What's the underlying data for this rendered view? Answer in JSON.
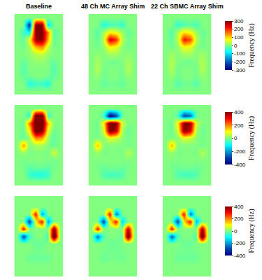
{
  "chart_data": {
    "type": "heatmap",
    "column_titles": [
      "Baseline",
      "48 Ch MC Array Shim",
      "22 Ch SBMC Array Shim"
    ],
    "colorbar_title": "Frequency (Hz)",
    "tick_labels": false,
    "rows": [
      {
        "zlim": [
          -300,
          300
        ],
        "zticks": [
          -300,
          -200,
          -100,
          0,
          100,
          200,
          300
        ],
        "cells": [
          [
            [
              0,
              0,
              0,
              0,
              0,
              0,
              0,
              0
            ],
            [
              0,
              0,
              -250,
              300,
              300,
              -100,
              0,
              0
            ],
            [
              0,
              -40,
              -80,
              300,
              300,
              150,
              -30,
              0
            ],
            [
              0,
              -20,
              60,
              280,
              300,
              120,
              -20,
              0
            ],
            [
              0,
              -10,
              20,
              120,
              150,
              40,
              -10,
              0
            ],
            [
              0,
              0,
              10,
              30,
              40,
              10,
              0,
              0
            ],
            [
              0,
              -20,
              0,
              10,
              10,
              0,
              -20,
              0
            ],
            [
              0,
              -30,
              0,
              0,
              0,
              0,
              -30,
              0
            ],
            [
              0,
              -20,
              -10,
              0,
              0,
              -10,
              -20,
              0
            ],
            [
              0,
              0,
              -60,
              -40,
              -40,
              -60,
              0,
              0
            ],
            [
              0,
              0,
              0,
              0,
              0,
              0,
              0,
              0
            ]
          ],
          [
            [
              0,
              0,
              0,
              0,
              0,
              0,
              0,
              0
            ],
            [
              0,
              0,
              -60,
              -40,
              -30,
              -50,
              0,
              0
            ],
            [
              0,
              -30,
              20,
              80,
              60,
              20,
              -20,
              0
            ],
            [
              0,
              -20,
              30,
              250,
              200,
              30,
              -10,
              0
            ],
            [
              0,
              -10,
              10,
              80,
              60,
              10,
              -10,
              0
            ],
            [
              0,
              10,
              0,
              20,
              20,
              0,
              10,
              0
            ],
            [
              0,
              20,
              0,
              -10,
              -10,
              0,
              20,
              0
            ],
            [
              0,
              30,
              -10,
              0,
              0,
              -10,
              30,
              0
            ],
            [
              0,
              10,
              -10,
              0,
              0,
              -10,
              10,
              0
            ],
            [
              0,
              0,
              -20,
              -10,
              -10,
              -20,
              0,
              0
            ],
            [
              0,
              0,
              0,
              0,
              0,
              0,
              0,
              0
            ]
          ],
          [
            [
              0,
              0,
              0,
              0,
              0,
              0,
              0,
              0
            ],
            [
              0,
              0,
              -50,
              -30,
              -20,
              -40,
              0,
              0
            ],
            [
              0,
              -30,
              30,
              90,
              70,
              20,
              -20,
              0
            ],
            [
              0,
              -20,
              30,
              220,
              180,
              30,
              -10,
              0
            ],
            [
              0,
              -10,
              10,
              70,
              60,
              10,
              -10,
              0
            ],
            [
              0,
              20,
              0,
              20,
              20,
              0,
              20,
              0
            ],
            [
              0,
              30,
              0,
              -10,
              -10,
              0,
              30,
              0
            ],
            [
              0,
              30,
              -10,
              0,
              0,
              -10,
              30,
              0
            ],
            [
              0,
              10,
              -10,
              0,
              0,
              -10,
              10,
              0
            ],
            [
              0,
              0,
              -30,
              -10,
              -10,
              -30,
              0,
              0
            ],
            [
              0,
              0,
              0,
              0,
              0,
              0,
              0,
              0
            ]
          ]
        ]
      },
      {
        "zlim": [
          -400,
          400
        ],
        "zticks": [
          -400,
          -200,
          0,
          200,
          400
        ],
        "cells": [
          [
            [
              0,
              0,
              0,
              0,
              0,
              0,
              0,
              0
            ],
            [
              0,
              0,
              -80,
              450,
              450,
              -60,
              0,
              0
            ],
            [
              0,
              -20,
              200,
              450,
              450,
              150,
              0,
              0
            ],
            [
              0,
              -20,
              100,
              450,
              400,
              80,
              -20,
              0
            ],
            [
              0,
              -30,
              20,
              200,
              180,
              20,
              -30,
              0
            ],
            [
              0,
              180,
              0,
              30,
              30,
              0,
              -20,
              0
            ],
            [
              0,
              20,
              -10,
              0,
              0,
              -10,
              60,
              0
            ],
            [
              0,
              -10,
              0,
              0,
              0,
              0,
              -10,
              0
            ],
            [
              0,
              -10,
              -30,
              -20,
              -20,
              -30,
              -10,
              0
            ],
            [
              0,
              0,
              -60,
              -80,
              -80,
              -60,
              0,
              0
            ],
            [
              0,
              0,
              0,
              0,
              0,
              0,
              0,
              0
            ]
          ],
          [
            [
              0,
              0,
              0,
              0,
              0,
              0,
              0,
              0
            ],
            [
              0,
              0,
              -50,
              -400,
              -300,
              -20,
              0,
              0
            ],
            [
              0,
              -20,
              100,
              450,
              400,
              60,
              0,
              0
            ],
            [
              0,
              -20,
              60,
              420,
              350,
              30,
              -20,
              0
            ],
            [
              0,
              -10,
              10,
              80,
              60,
              10,
              -10,
              0
            ],
            [
              0,
              150,
              0,
              0,
              0,
              0,
              -10,
              0
            ],
            [
              0,
              20,
              -10,
              0,
              0,
              -10,
              40,
              0
            ],
            [
              0,
              0,
              0,
              0,
              0,
              0,
              0,
              0
            ],
            [
              0,
              -10,
              -20,
              -10,
              -10,
              -20,
              -10,
              0
            ],
            [
              0,
              0,
              -40,
              -50,
              -50,
              -40,
              0,
              0
            ],
            [
              0,
              0,
              0,
              0,
              0,
              0,
              0,
              0
            ]
          ],
          [
            [
              0,
              0,
              0,
              0,
              0,
              0,
              0,
              0
            ],
            [
              0,
              0,
              -40,
              -300,
              -250,
              -20,
              0,
              0
            ],
            [
              0,
              -20,
              100,
              400,
              380,
              60,
              0,
              0
            ],
            [
              0,
              -20,
              60,
              400,
              330,
              30,
              -20,
              0
            ],
            [
              0,
              -10,
              10,
              80,
              60,
              10,
              -10,
              0
            ],
            [
              0,
              160,
              0,
              0,
              0,
              0,
              -10,
              0
            ],
            [
              0,
              20,
              -10,
              0,
              0,
              -10,
              40,
              0
            ],
            [
              0,
              0,
              0,
              0,
              0,
              0,
              0,
              0
            ],
            [
              0,
              -10,
              -20,
              -10,
              -10,
              -20,
              -10,
              0
            ],
            [
              0,
              0,
              -40,
              -50,
              -50,
              -40,
              0,
              0
            ],
            [
              0,
              0,
              0,
              0,
              0,
              0,
              0,
              0
            ]
          ]
        ]
      },
      {
        "zlim": [
          -400,
          400
        ],
        "zticks": [
          -400,
          -200,
          0,
          200,
          400
        ],
        "cells": [
          [
            [
              0,
              0,
              0,
              0,
              0,
              0,
              0,
              0
            ],
            [
              0,
              0,
              0,
              0,
              0,
              0,
              0,
              0
            ],
            [
              0,
              0,
              0,
              300,
              -200,
              0,
              0,
              0
            ],
            [
              0,
              0,
              -300,
              100,
              300,
              -200,
              0,
              0
            ],
            [
              0,
              300,
              0,
              0,
              0,
              0,
              400,
              0
            ],
            [
              0,
              -300,
              -50,
              0,
              0,
              -50,
              500,
              0
            ],
            [
              0,
              0,
              0,
              -20,
              -20,
              0,
              0,
              0
            ],
            [
              0,
              0,
              0,
              -10,
              -10,
              0,
              0,
              0
            ],
            [
              0,
              0,
              -20,
              -20,
              -20,
              -20,
              0,
              0
            ],
            [
              0,
              0,
              0,
              0,
              0,
              0,
              0,
              0
            ],
            [
              0,
              0,
              0,
              0,
              0,
              0,
              0,
              0
            ]
          ],
          [
            [
              0,
              0,
              0,
              0,
              0,
              0,
              0,
              0
            ],
            [
              0,
              0,
              0,
              0,
              0,
              0,
              0,
              0
            ],
            [
              0,
              0,
              0,
              300,
              -250,
              0,
              0,
              0
            ],
            [
              0,
              0,
              -300,
              100,
              300,
              -150,
              0,
              0
            ],
            [
              0,
              300,
              0,
              0,
              0,
              0,
              350,
              0
            ],
            [
              0,
              -250,
              -30,
              0,
              0,
              -30,
              450,
              0
            ],
            [
              0,
              0,
              0,
              -20,
              -20,
              0,
              0,
              0
            ],
            [
              0,
              0,
              -10,
              -10,
              -10,
              -10,
              0,
              0
            ],
            [
              0,
              0,
              -20,
              -10,
              -10,
              -20,
              0,
              0
            ],
            [
              0,
              0,
              0,
              0,
              0,
              0,
              0,
              0
            ],
            [
              0,
              0,
              0,
              0,
              0,
              0,
              0,
              0
            ]
          ],
          [
            [
              0,
              0,
              0,
              0,
              0,
              0,
              0,
              0
            ],
            [
              0,
              0,
              0,
              0,
              0,
              0,
              0,
              0
            ],
            [
              0,
              0,
              0,
              300,
              -250,
              0,
              0,
              0
            ],
            [
              0,
              0,
              -300,
              120,
              300,
              -180,
              0,
              0
            ],
            [
              0,
              300,
              0,
              0,
              0,
              0,
              380,
              0
            ],
            [
              0,
              -280,
              -40,
              0,
              0,
              -40,
              480,
              0
            ],
            [
              0,
              0,
              0,
              -20,
              -20,
              0,
              0,
              0
            ],
            [
              0,
              0,
              -10,
              -10,
              -10,
              -10,
              0,
              0
            ],
            [
              0,
              0,
              -20,
              -20,
              -20,
              -20,
              0,
              0
            ],
            [
              0,
              0,
              0,
              0,
              0,
              0,
              0,
              0
            ],
            [
              0,
              0,
              0,
              0,
              0,
              0,
              0,
              0
            ]
          ]
        ]
      }
    ]
  }
}
